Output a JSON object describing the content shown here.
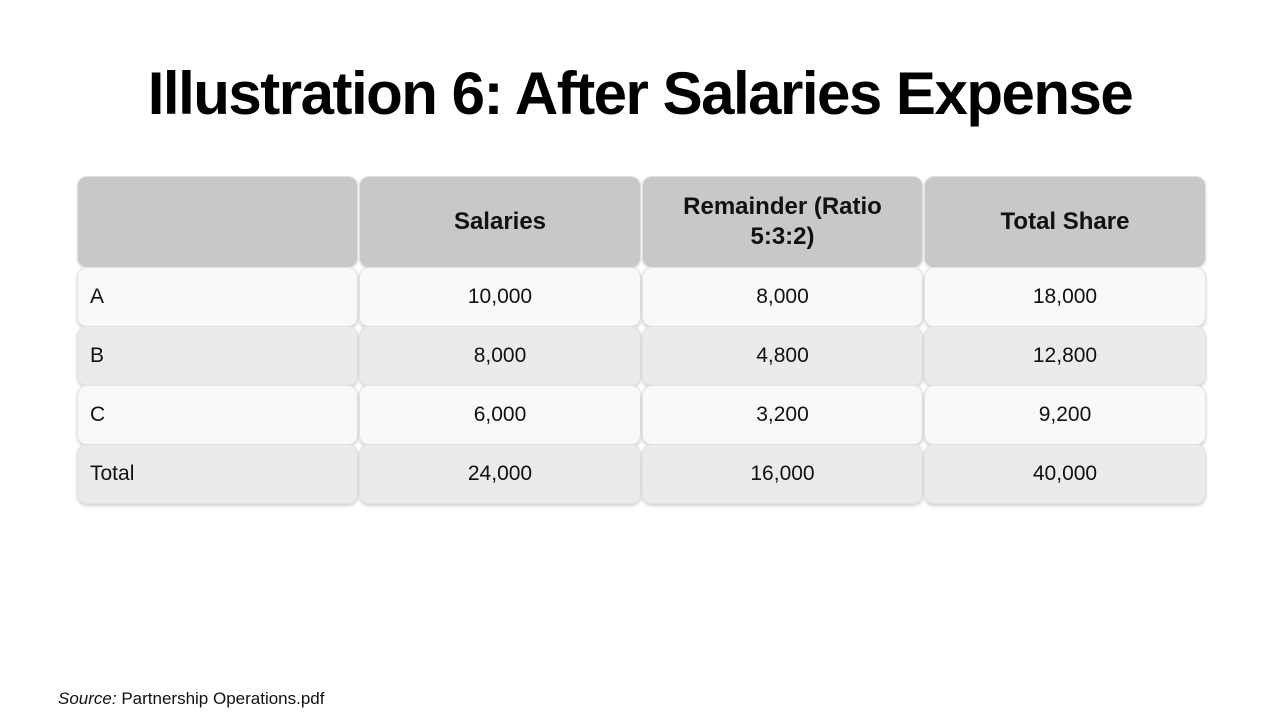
{
  "slide": {
    "title": "Illustration 6: After Salaries Expense",
    "source_label": "Source:",
    "source_text": " Partnership Operations.pdf"
  },
  "table": {
    "headers": [
      "",
      "Salaries",
      "Remainder (Ratio 5:3:2)",
      "Total Share"
    ],
    "rows": [
      {
        "label": "A",
        "salaries": "10,000",
        "remainder": "8,000",
        "total_share": "18,000"
      },
      {
        "label": "B",
        "salaries": "8,000",
        "remainder": "4,800",
        "total_share": "12,800"
      },
      {
        "label": "C",
        "salaries": "6,000",
        "remainder": "3,200",
        "total_share": "9,200"
      },
      {
        "label": "Total",
        "salaries": "24,000",
        "remainder": "16,000",
        "total_share": "40,000"
      }
    ]
  },
  "colors": {
    "header_bg": "#c8c8c8",
    "row_light_bg": "#f9f9f9",
    "row_dark_bg": "#ebebeb",
    "text": "#000000"
  }
}
